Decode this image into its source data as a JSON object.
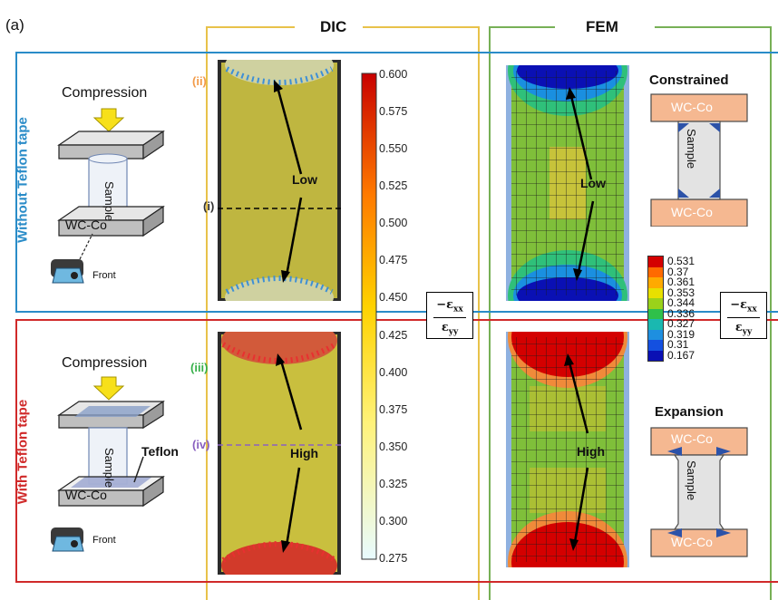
{
  "panel_label": "(a)",
  "columns": {
    "dic": "DIC",
    "fem": "FEM"
  },
  "rows": {
    "top": {
      "title": "Without Teflon tape",
      "top_label": "Compression",
      "base_label": "WC-Co",
      "sample_label": "Sample",
      "camera_label": "Front"
    },
    "bottom": {
      "title": "With Teflon tape",
      "top_label": "Compression",
      "base_label": "WC-Co",
      "sample_label": "Sample",
      "teflon_label": "Teflon",
      "camera_label": "Front"
    }
  },
  "dic": {
    "markers_top": [
      "(ii)",
      "(i)"
    ],
    "markers_bottom": [
      "(iii)",
      "(iv)"
    ],
    "low_label": "Low",
    "high_label": "High"
  },
  "dic_colorbar": {
    "ticks": [
      "0.600",
      "0.575",
      "0.550",
      "0.525",
      "0.500",
      "0.475",
      "0.450",
      "0.425",
      "0.400",
      "0.375",
      "0.350",
      "0.325",
      "0.300",
      "0.275"
    ]
  },
  "strain_ratio": {
    "numerator": "−ε",
    "num_sub": "xx",
    "denominator": "ε",
    "den_sub": "yy"
  },
  "fem": {
    "low_label": "Low",
    "high_label": "High",
    "constrained": {
      "title": "Constrained",
      "top": "WC-Co",
      "sample": "Sample",
      "bottom": "WC-Co"
    },
    "expansion": {
      "title": "Expansion",
      "top": "WC-Co",
      "sample": "Sample",
      "bottom": "WC-Co"
    },
    "legend": [
      "0.531",
      "0.37",
      "0.361",
      "0.353",
      "0.344",
      "0.336",
      "0.327",
      "0.319",
      "0.31",
      "0.167"
    ],
    "legend_colors": [
      "#d40000",
      "#ff6a00",
      "#ffaa00",
      "#e8e000",
      "#9ad21a",
      "#2fc04a",
      "#1ab8b0",
      "#1e8fe0",
      "#1450e0",
      "#0a10b4"
    ]
  }
}
